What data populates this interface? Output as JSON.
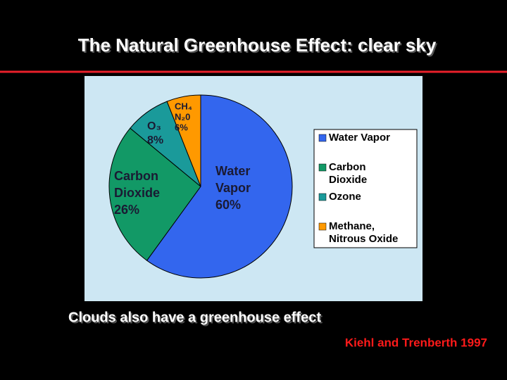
{
  "chart_data": {
    "type": "pie",
    "title": "The Natural Greenhouse Effect: clear sky",
    "subtitle": "Clouds also have a greenhouse effect",
    "source": "Kiehl and Trenberth 1997",
    "categories": [
      "Water Vapor",
      "Carbon Dioxide",
      "Ozone",
      "Methane, Nitrous Oxide"
    ],
    "values": [
      60,
      26,
      8,
      6
    ],
    "value_labels": [
      "60%",
      "26%",
      "8%",
      "6%"
    ],
    "slice_labels": [
      [
        "Water",
        "Vapor"
      ],
      [
        "Carbon",
        "Dioxide"
      ],
      [
        "O₃"
      ],
      [
        "CH₄",
        "N₂0"
      ]
    ],
    "colors": [
      "#3366ee",
      "#129966",
      "#1a9a9a",
      "#ff9900"
    ],
    "legend": "right"
  }
}
